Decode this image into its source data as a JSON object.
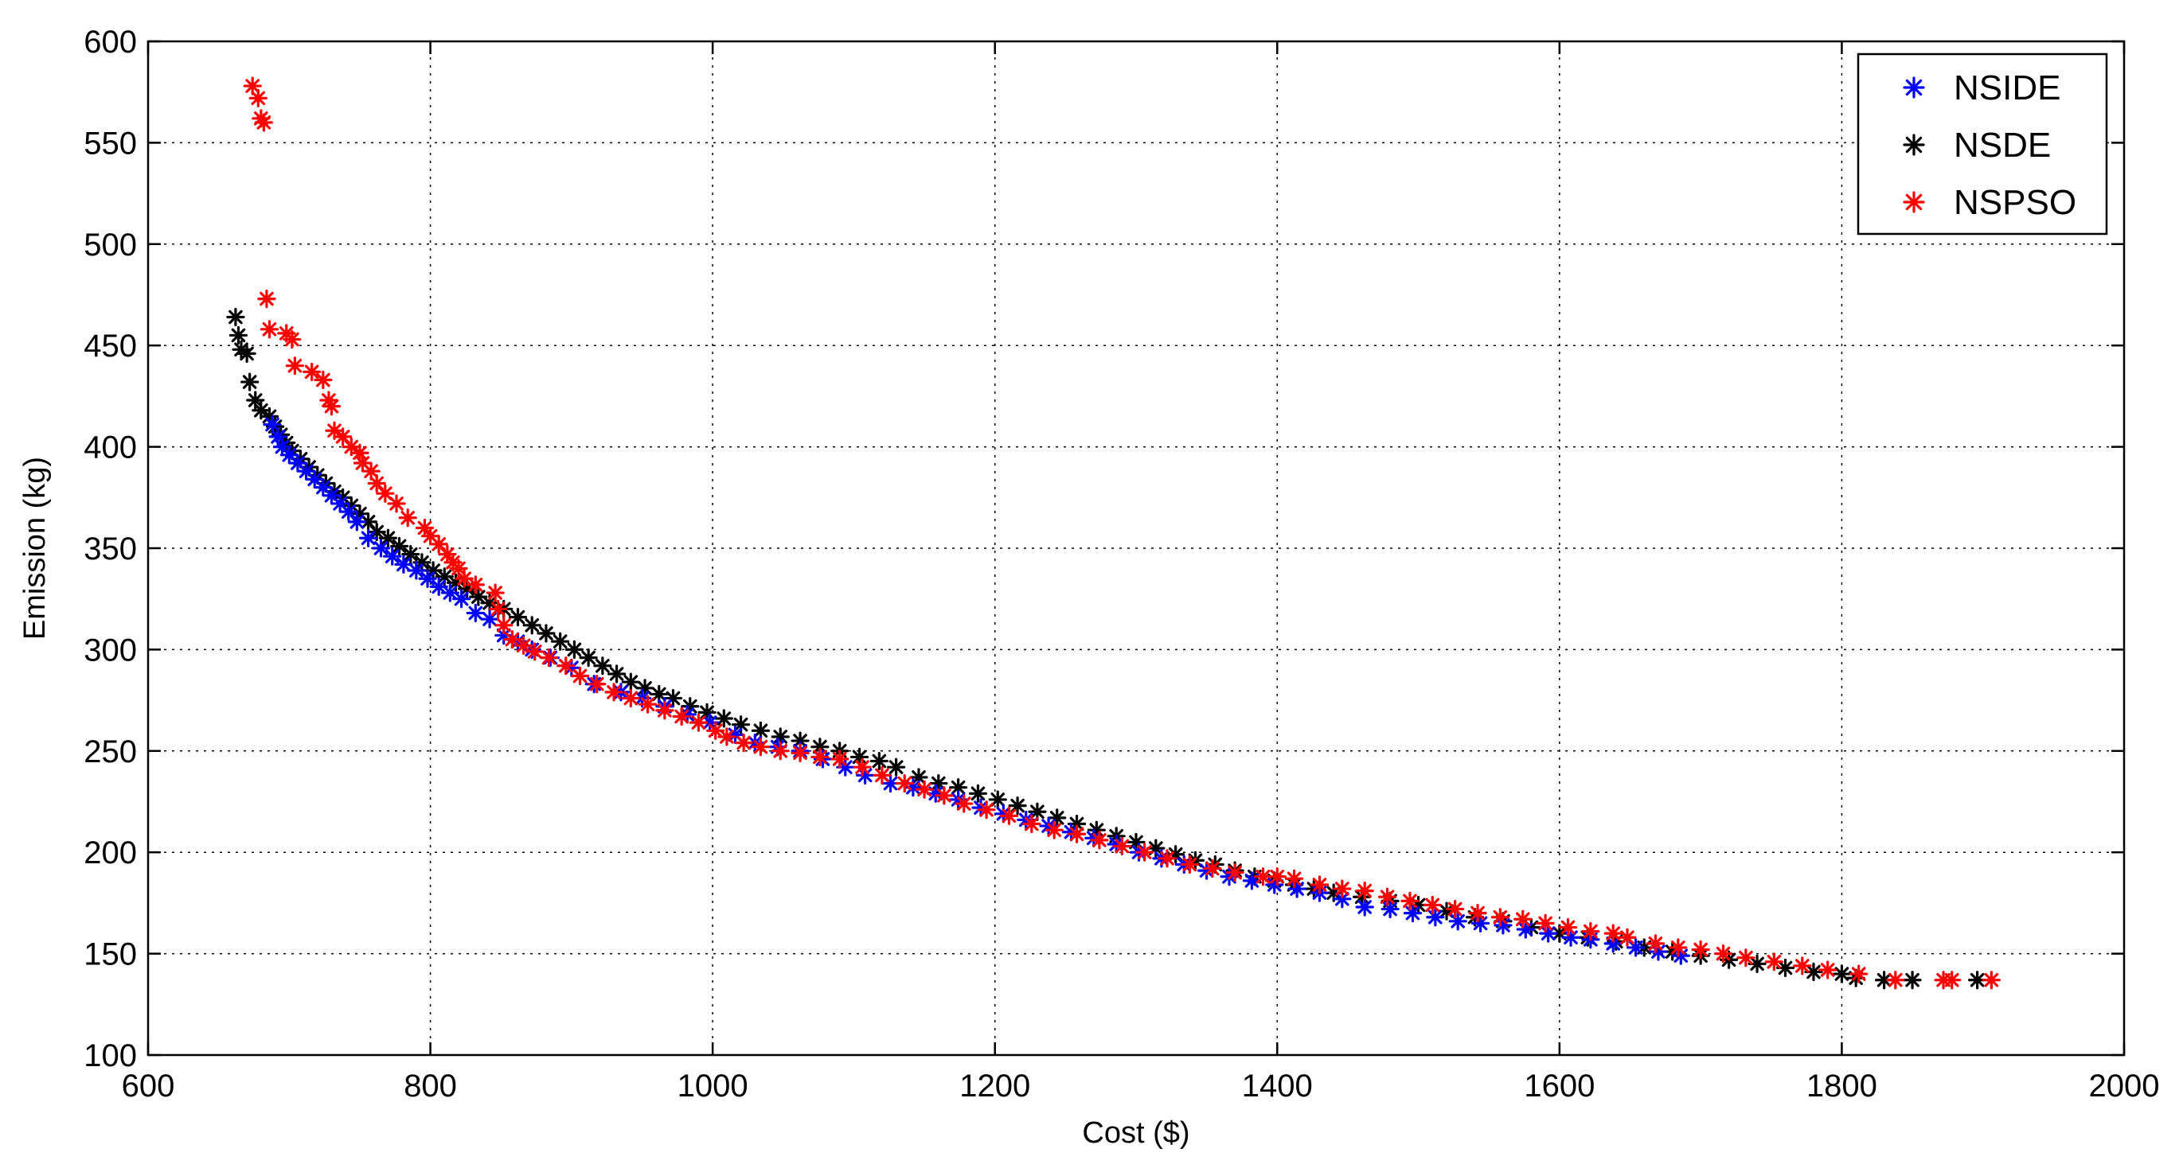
{
  "chart_data": {
    "type": "scatter",
    "title": "",
    "xlabel": "Cost ($)",
    "ylabel": "Emission (kg)",
    "xlim": [
      600,
      2000
    ],
    "ylim": [
      100,
      600
    ],
    "xticks": [
      600,
      800,
      1000,
      1200,
      1400,
      1600,
      1800,
      2000
    ],
    "yticks": [
      100,
      150,
      200,
      250,
      300,
      350,
      400,
      450,
      500,
      550,
      600
    ],
    "grid": true,
    "legend_position": "top-right",
    "marker": "*",
    "series": [
      {
        "name": "NSIDE",
        "color": "#0000ff",
        "points": [
          [
            688,
            411
          ],
          [
            692,
            405
          ],
          [
            695,
            400
          ],
          [
            700,
            396
          ],
          [
            706,
            392
          ],
          [
            712,
            388
          ],
          [
            718,
            384
          ],
          [
            724,
            380
          ],
          [
            730,
            376
          ],
          [
            736,
            372
          ],
          [
            742,
            368
          ],
          [
            748,
            363
          ],
          [
            756,
            355
          ],
          [
            765,
            350
          ],
          [
            773,
            346
          ],
          [
            781,
            342
          ],
          [
            790,
            339
          ],
          [
            798,
            335
          ],
          [
            806,
            331
          ],
          [
            814,
            328
          ],
          [
            822,
            325
          ],
          [
            832,
            318
          ],
          [
            842,
            315
          ],
          [
            852,
            307
          ],
          [
            862,
            304
          ],
          [
            872,
            300
          ],
          [
            885,
            296
          ],
          [
            900,
            291
          ],
          [
            916,
            283
          ],
          [
            935,
            279
          ],
          [
            950,
            276
          ],
          [
            966,
            272
          ],
          [
            982,
            268
          ],
          [
            998,
            264
          ],
          [
            1016,
            258
          ],
          [
            1030,
            254
          ],
          [
            1046,
            252
          ],
          [
            1062,
            250
          ],
          [
            1078,
            246
          ],
          [
            1094,
            242
          ],
          [
            1108,
            238
          ],
          [
            1126,
            234
          ],
          [
            1142,
            232
          ],
          [
            1158,
            229
          ],
          [
            1174,
            226
          ],
          [
            1190,
            222
          ],
          [
            1206,
            219
          ],
          [
            1222,
            216
          ],
          [
            1238,
            213
          ],
          [
            1254,
            210
          ],
          [
            1270,
            207
          ],
          [
            1286,
            204
          ],
          [
            1302,
            200
          ],
          [
            1318,
            197
          ],
          [
            1334,
            194
          ],
          [
            1350,
            191
          ],
          [
            1366,
            188
          ],
          [
            1382,
            186
          ],
          [
            1398,
            184
          ],
          [
            1414,
            182
          ],
          [
            1430,
            180
          ],
          [
            1446,
            177
          ],
          [
            1462,
            173
          ],
          [
            1480,
            172
          ],
          [
            1496,
            170
          ],
          [
            1512,
            168
          ],
          [
            1528,
            166
          ],
          [
            1544,
            165
          ],
          [
            1560,
            164
          ],
          [
            1576,
            162
          ],
          [
            1592,
            160
          ],
          [
            1608,
            158
          ],
          [
            1622,
            157
          ],
          [
            1638,
            155
          ],
          [
            1654,
            153
          ],
          [
            1670,
            151
          ],
          [
            1686,
            149
          ]
        ]
      },
      {
        "name": "NSDE",
        "color": "#000000",
        "points": [
          [
            662,
            464
          ],
          [
            664,
            455
          ],
          [
            666,
            448
          ],
          [
            670,
            446
          ],
          [
            672,
            432
          ],
          [
            676,
            423
          ],
          [
            680,
            418
          ],
          [
            686,
            415
          ],
          [
            690,
            410
          ],
          [
            694,
            406
          ],
          [
            698,
            402
          ],
          [
            702,
            398
          ],
          [
            708,
            394
          ],
          [
            714,
            390
          ],
          [
            720,
            386
          ],
          [
            726,
            382
          ],
          [
            732,
            378
          ],
          [
            738,
            375
          ],
          [
            744,
            371
          ],
          [
            750,
            367
          ],
          [
            756,
            363
          ],
          [
            762,
            358
          ],
          [
            770,
            355
          ],
          [
            778,
            351
          ],
          [
            786,
            347
          ],
          [
            794,
            343
          ],
          [
            802,
            339
          ],
          [
            810,
            336
          ],
          [
            818,
            333
          ],
          [
            826,
            330
          ],
          [
            834,
            326
          ],
          [
            842,
            323
          ],
          [
            852,
            320
          ],
          [
            862,
            316
          ],
          [
            872,
            312
          ],
          [
            882,
            308
          ],
          [
            892,
            304
          ],
          [
            902,
            300
          ],
          [
            912,
            296
          ],
          [
            922,
            292
          ],
          [
            932,
            288
          ],
          [
            942,
            284
          ],
          [
            952,
            281
          ],
          [
            962,
            278
          ],
          [
            972,
            276
          ],
          [
            984,
            272
          ],
          [
            996,
            269
          ],
          [
            1008,
            266
          ],
          [
            1020,
            263
          ],
          [
            1034,
            260
          ],
          [
            1048,
            257
          ],
          [
            1062,
            255
          ],
          [
            1076,
            252
          ],
          [
            1090,
            250
          ],
          [
            1104,
            247
          ],
          [
            1118,
            245
          ],
          [
            1130,
            242
          ],
          [
            1146,
            237
          ],
          [
            1160,
            234
          ],
          [
            1174,
            232
          ],
          [
            1188,
            229
          ],
          [
            1202,
            226
          ],
          [
            1216,
            223
          ],
          [
            1230,
            220
          ],
          [
            1244,
            217
          ],
          [
            1258,
            214
          ],
          [
            1272,
            211
          ],
          [
            1286,
            208
          ],
          [
            1300,
            205
          ],
          [
            1314,
            202
          ],
          [
            1328,
            199
          ],
          [
            1342,
            196
          ],
          [
            1356,
            194
          ],
          [
            1370,
            191
          ],
          [
            1384,
            188
          ],
          [
            1398,
            186
          ],
          [
            1412,
            184
          ],
          [
            1426,
            182
          ],
          [
            1440,
            180
          ],
          [
            1460,
            178
          ],
          [
            1480,
            176
          ],
          [
            1500,
            174
          ],
          [
            1520,
            171
          ],
          [
            1540,
            168
          ],
          [
            1560,
            166
          ],
          [
            1580,
            163
          ],
          [
            1600,
            160
          ],
          [
            1620,
            158
          ],
          [
            1640,
            156
          ],
          [
            1660,
            153
          ],
          [
            1680,
            151
          ],
          [
            1700,
            149
          ],
          [
            1720,
            147
          ],
          [
            1740,
            145
          ],
          [
            1760,
            143
          ],
          [
            1780,
            141
          ],
          [
            1800,
            140
          ],
          [
            1810,
            138
          ],
          [
            1830,
            137
          ],
          [
            1850,
            137
          ],
          [
            1896,
            137
          ]
        ]
      },
      {
        "name": "NSPSO",
        "color": "#ff0000",
        "points": [
          [
            674,
            578
          ],
          [
            678,
            572
          ],
          [
            680,
            562
          ],
          [
            682,
            560
          ],
          [
            684,
            473
          ],
          [
            686,
            458
          ],
          [
            698,
            456
          ],
          [
            702,
            453
          ],
          [
            704,
            440
          ],
          [
            716,
            437
          ],
          [
            724,
            433
          ],
          [
            728,
            423
          ],
          [
            730,
            420
          ],
          [
            732,
            408
          ],
          [
            738,
            405
          ],
          [
            744,
            400
          ],
          [
            750,
            397
          ],
          [
            752,
            392
          ],
          [
            758,
            388
          ],
          [
            762,
            382
          ],
          [
            768,
            377
          ],
          [
            776,
            372
          ],
          [
            784,
            365
          ],
          [
            796,
            360
          ],
          [
            800,
            356
          ],
          [
            806,
            352
          ],
          [
            812,
            347
          ],
          [
            816,
            343
          ],
          [
            820,
            340
          ],
          [
            824,
            335
          ],
          [
            832,
            332
          ],
          [
            846,
            328
          ],
          [
            848,
            320
          ],
          [
            852,
            312
          ],
          [
            858,
            305
          ],
          [
            866,
            302
          ],
          [
            874,
            299
          ],
          [
            884,
            296
          ],
          [
            896,
            292
          ],
          [
            906,
            287
          ],
          [
            918,
            283
          ],
          [
            930,
            279
          ],
          [
            942,
            276
          ],
          [
            954,
            273
          ],
          [
            966,
            270
          ],
          [
            978,
            267
          ],
          [
            990,
            264
          ],
          [
            1002,
            260
          ],
          [
            1010,
            257
          ],
          [
            1022,
            254
          ],
          [
            1034,
            252
          ],
          [
            1048,
            250
          ],
          [
            1062,
            249
          ],
          [
            1076,
            247
          ],
          [
            1090,
            246
          ],
          [
            1106,
            242
          ],
          [
            1120,
            238
          ],
          [
            1136,
            234
          ],
          [
            1150,
            231
          ],
          [
            1164,
            228
          ],
          [
            1178,
            224
          ],
          [
            1194,
            221
          ],
          [
            1210,
            218
          ],
          [
            1226,
            214
          ],
          [
            1242,
            211
          ],
          [
            1258,
            209
          ],
          [
            1274,
            206
          ],
          [
            1290,
            203
          ],
          [
            1306,
            200
          ],
          [
            1322,
            197
          ],
          [
            1338,
            194
          ],
          [
            1354,
            192
          ],
          [
            1370,
            190
          ],
          [
            1390,
            188
          ],
          [
            1400,
            188
          ],
          [
            1412,
            187
          ],
          [
            1430,
            184
          ],
          [
            1446,
            182
          ],
          [
            1462,
            181
          ],
          [
            1478,
            178
          ],
          [
            1494,
            176
          ],
          [
            1510,
            174
          ],
          [
            1526,
            172
          ],
          [
            1542,
            170
          ],
          [
            1558,
            168
          ],
          [
            1574,
            167
          ],
          [
            1590,
            165
          ],
          [
            1606,
            163
          ],
          [
            1622,
            161
          ],
          [
            1638,
            160
          ],
          [
            1648,
            158
          ],
          [
            1668,
            155
          ],
          [
            1684,
            153
          ],
          [
            1700,
            152
          ],
          [
            1716,
            150
          ],
          [
            1732,
            148
          ],
          [
            1752,
            146
          ],
          [
            1772,
            144
          ],
          [
            1790,
            142
          ],
          [
            1812,
            140
          ],
          [
            1838,
            137
          ],
          [
            1872,
            137
          ],
          [
            1878,
            137
          ],
          [
            1906,
            137
          ]
        ]
      }
    ]
  }
}
